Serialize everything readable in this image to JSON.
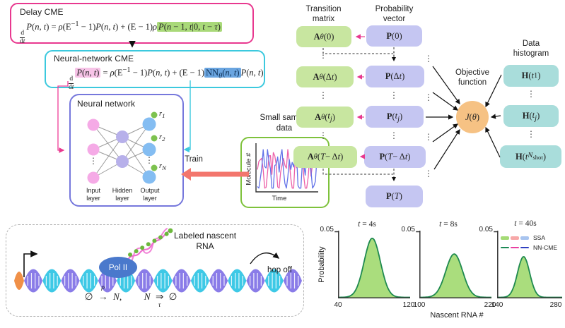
{
  "glyphs": {
    "vdots": "⋮"
  },
  "colors": {
    "delay_box_border": "#e8388f",
    "nncme_box_border": "#3cc9de",
    "nn_box_border": "#7678dc",
    "highlight_green": "#a9d979",
    "highlight_pink": "#f7c3e7",
    "highlight_blue": "#6aa5e0",
    "transition_box_fill": "#c8e6a0",
    "probability_box_fill": "#c5c6f2",
    "histogram_box_fill": "#a9dddb",
    "objective_circle_fill": "#f6c284",
    "train_arrow": "#f3766d",
    "sample_box_border": "#7ec23c",
    "sample_line_pink": "#ec5fa8",
    "sample_line_blue": "#6272e8",
    "dna_purple": "#8a7ce8",
    "dna_cyan": "#3ec9e6",
    "dna_orange": "#f09048",
    "pol_fill": "#4a79cc",
    "rna_pink": "#ef6fd0",
    "rna_bead_green": "#6cb83c",
    "curve_fill": "#a5db76",
    "curve_stroke": "#1f8a50",
    "pink_arrow": "#e8388f"
  },
  "delay_cme": {
    "title": "Delay CME",
    "equation_html": "<span class=\"frac\"><span>d</span><span>d<i>t</i></span></span><i>P</i>(<i>n</i>, <i>t</i>) = <i>ρ</i>(E<sup>−1</sup> − 1)<i>P</i>(<i>n</i>, <i>t</i>) + (E − 1)<i>ρ</i><mark class=\"hl-green\"><i>P</i>(<i>n</i> − 1, <i>t</i>|0, <i>t</i> − <i>τ</i>)</mark>"
  },
  "nn_cme": {
    "title": "Neural-network CME",
    "equation_html": "<span class=\"frac\"><span>d</span><span>d<i>t</i></span></span><mark class=\"hl-pink\"><i>P</i>(<i>n</i>, <i>t</i>)</mark> = <i>ρ</i>(E<sup>−1</sup> − 1)<i>P</i>(<i>n</i>, <i>t</i>) + (E − 1)<mark class=\"hl-blue\">NN<sub><i>θ</i></sub>(<i>n</i>, <i>t</i>)</mark><i>P</i>(<i>n</i>, <i>t</i>)"
  },
  "neural_network": {
    "title": "Neural network",
    "outputs_html": [
      "<i>r</i><sub>1</sub>",
      "<i>r</i><sub>2</sub>",
      "<i>r</i><sub><i>N</i></sub>"
    ],
    "layers": [
      {
        "line1": "Input",
        "line2": "layer"
      },
      {
        "line1": "Hidden",
        "line2": "layer"
      },
      {
        "line1": "Output",
        "line2": "layer"
      }
    ]
  },
  "small_sample": {
    "title_line1": "Small sample",
    "title_line2": "data",
    "ylabel": "Molecule #",
    "xlabel": "Time"
  },
  "train_label": "Train",
  "pipeline": {
    "transition_header1": "Transition",
    "transition_header2": "matrix",
    "probability_header1": "Probability",
    "probability_header2": "vector",
    "histogram_header1": "Data",
    "histogram_header2": "histogram",
    "objective_label1": "Objective",
    "objective_label2": "function",
    "objective_html": "<i>J</i>(<i>θ</i>)",
    "transition_boxes_html": [
      "<b>A</b><sub><i>θ</i></sub>(0)",
      "<b>A</b><sub><i>θ</i></sub>(Δ<i>t</i>)",
      "<b>A</b><sub><i>θ</i></sub>(<i>t<sub>j</sub></i>)",
      "<b>A</b><sub><i>θ</i></sub>(<i>T</i> − Δ<i>t</i>)"
    ],
    "probability_boxes_html": [
      "<b>P</b>(0)",
      "<b>P</b>(Δ<i>t</i>)",
      "<b>P</b>(<i>t<sub>j</sub></i>)",
      "<b>P</b>(<i>T</i> − Δ<i>t</i>)",
      "<b>P</b>(<i>T</i>)"
    ],
    "histogram_boxes_html": [
      "<b>H</b>(<i>t</i><sub>1</sub>)",
      "<b>H</b>(<i>t<sub>j</sub></i>)",
      "<b>H</b>(<i>t</i><sub><i>N</i><sub>shot</sub></sub>)"
    ]
  },
  "gene_model": {
    "pol_label": "Pol II",
    "rna_label1": "Labeled nascent",
    "rna_label2": "RNA",
    "hop_label": "hop off",
    "reaction1_html": "∅ <span class=\"rxa\"><span class=\"above\">ρ</span>→</span> <i>N</i>,",
    "reaction2_html": "<i>N</i> <span class=\"rxa\"><span class=\"below\">τ</span>⇒</span> ∅"
  },
  "chart_data": {
    "type": "area",
    "xlabel": "Nascent RNA #",
    "ylabel": "Probability",
    "ytick_label": "0.05",
    "ylim": [
      0,
      0.05
    ],
    "grid": false,
    "legend_position": "top-right of third panel",
    "legend": [
      {
        "label": "SSA",
        "style": "filled",
        "colors": [
          "#a5db76",
          "#f7a8a8",
          "#a8c4ef"
        ]
      },
      {
        "label": "NN-CME",
        "style": "dashed",
        "colors": [
          "#1b8a55",
          "#e83fa0",
          "#2f3fc0"
        ]
      }
    ],
    "panels": [
      {
        "title_html": "<i>t</i> = 4s",
        "xlim": [
          40,
          120
        ],
        "xticks": [
          40,
          120
        ],
        "series": [
          {
            "name": "SSA + NN-CME (overlapping)",
            "shape": "gaussian",
            "mean": 78,
            "sigma": 9,
            "peak": 0.045
          }
        ]
      },
      {
        "title_html": "<i>t</i> = 8s",
        "xlim": [
          100,
          220
        ],
        "xticks": [
          100,
          220
        ],
        "series": [
          {
            "name": "SSA + NN-CME (overlapping)",
            "shape": "gaussian",
            "mean": 158,
            "sigma": 14,
            "peak": 0.033
          }
        ]
      },
      {
        "title_html": "<i>t</i> = 40s",
        "xlim": [
          140,
          280
        ],
        "xticks": [
          140,
          280
        ],
        "series": [
          {
            "name": "SSA + NN-CME (overlapping)",
            "shape": "gaussian",
            "mean": 197,
            "sigma": 13,
            "peak": 0.031
          }
        ]
      }
    ]
  }
}
